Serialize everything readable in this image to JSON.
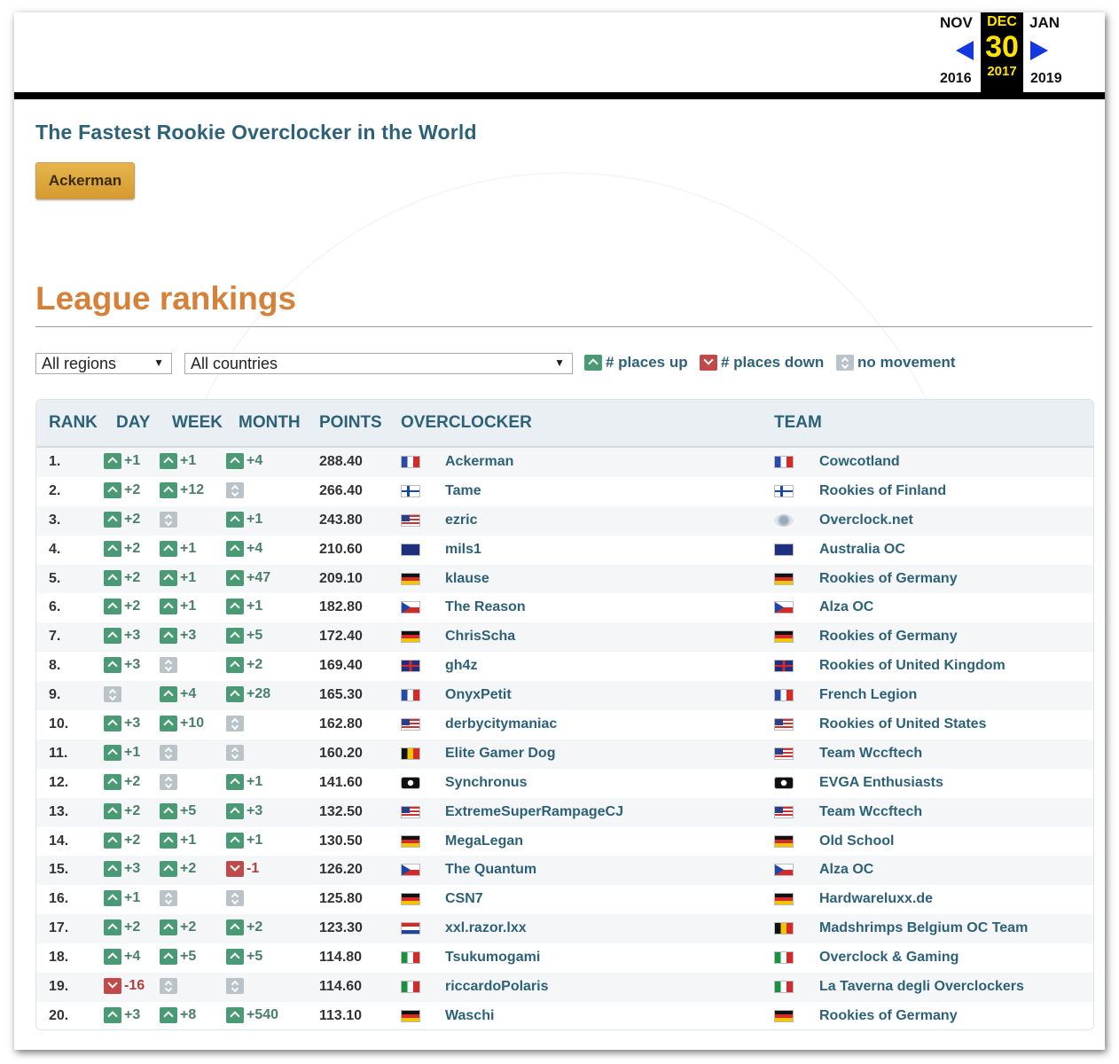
{
  "date_nav": {
    "prev_month": "NOV",
    "current_month": "DEC",
    "current_day": "30",
    "next_month": "JAN",
    "prev_year": "2016",
    "current_year": "2017",
    "next_year": "2019",
    "arrow_color": "#1437e0",
    "highlight_color": "#ffe300"
  },
  "rookie": {
    "title": "The Fastest Rookie Overclocker in the World",
    "winner": "Ackerman"
  },
  "league": {
    "title": "League rankings",
    "region_select": "All regions",
    "country_select": "All countries",
    "legend_up": "# places up",
    "legend_down": "# places down",
    "legend_none": "no movement"
  },
  "table": {
    "headers": {
      "rank": "RANK",
      "day": "DAY",
      "week": "WEEK",
      "month": "MONTH",
      "points": "POINTS",
      "overclocker": "OVERCLOCKER",
      "team": "TEAM"
    },
    "rows": [
      {
        "rank": "1.",
        "day": "+1",
        "week": "+1",
        "month": "+4",
        "points": "288.40",
        "oc": "Ackerman",
        "oc_flag": "fr",
        "team": "Cowcotland",
        "team_flag": "fr"
      },
      {
        "rank": "2.",
        "day": "+2",
        "week": "+12",
        "month": "",
        "points": "266.40",
        "oc": "Tame",
        "oc_flag": "fi",
        "team": "Rookies of Finland",
        "team_flag": "fi"
      },
      {
        "rank": "3.",
        "day": "+2",
        "week": "",
        "month": "+1",
        "points": "243.80",
        "oc": "ezric",
        "oc_flag": "us",
        "team": "Overclock.net",
        "team_flag": "ocnet"
      },
      {
        "rank": "4.",
        "day": "+2",
        "week": "+1",
        "month": "+4",
        "points": "210.60",
        "oc": "mils1",
        "oc_flag": "au",
        "team": "Australia OC",
        "team_flag": "au"
      },
      {
        "rank": "5.",
        "day": "+2",
        "week": "+1",
        "month": "+47",
        "points": "209.10",
        "oc": "klause",
        "oc_flag": "de",
        "team": "Rookies of Germany",
        "team_flag": "de"
      },
      {
        "rank": "6.",
        "day": "+2",
        "week": "+1",
        "month": "+1",
        "points": "182.80",
        "oc": "The Reason",
        "oc_flag": "cz",
        "team": "Alza OC",
        "team_flag": "cz"
      },
      {
        "rank": "7.",
        "day": "+3",
        "week": "+3",
        "month": "+5",
        "points": "172.40",
        "oc": "ChrisScha",
        "oc_flag": "de",
        "team": "Rookies of Germany",
        "team_flag": "de"
      },
      {
        "rank": "8.",
        "day": "+3",
        "week": "",
        "month": "+2",
        "points": "169.40",
        "oc": "gh4z",
        "oc_flag": "gb",
        "team": "Rookies of United Kingdom",
        "team_flag": "gb"
      },
      {
        "rank": "9.",
        "day": "",
        "week": "+4",
        "month": "+28",
        "points": "165.30",
        "oc": "OnyxPetit",
        "oc_flag": "fr",
        "team": "French Legion",
        "team_flag": "fr"
      },
      {
        "rank": "10.",
        "day": "+3",
        "week": "+10",
        "month": "",
        "points": "162.80",
        "oc": "derbycitymaniac",
        "oc_flag": "us",
        "team": "Rookies of United States",
        "team_flag": "us"
      },
      {
        "rank": "11.",
        "day": "+1",
        "week": "",
        "month": "",
        "points": "160.20",
        "oc": "Elite Gamer Dog",
        "oc_flag": "be",
        "team": "Team Wccftech",
        "team_flag": "us"
      },
      {
        "rank": "12.",
        "day": "+2",
        "week": "",
        "month": "+1",
        "points": "141.60",
        "oc": "Synchronus",
        "oc_flag": "evga",
        "team": "EVGA Enthusiasts",
        "team_flag": "evga"
      },
      {
        "rank": "13.",
        "day": "+2",
        "week": "+5",
        "month": "+3",
        "points": "132.50",
        "oc": "ExtremeSuperRampageCJ",
        "oc_flag": "us",
        "team": "Team Wccftech",
        "team_flag": "us"
      },
      {
        "rank": "14.",
        "day": "+2",
        "week": "+1",
        "month": "+1",
        "points": "130.50",
        "oc": "MegaLegan",
        "oc_flag": "de",
        "team": "Old School",
        "team_flag": "de"
      },
      {
        "rank": "15.",
        "day": "+3",
        "week": "+2",
        "month": "-1",
        "points": "126.20",
        "oc": "The Quantum",
        "oc_flag": "cz",
        "team": "Alza OC",
        "team_flag": "cz"
      },
      {
        "rank": "16.",
        "day": "+1",
        "week": "",
        "month": "",
        "points": "125.80",
        "oc": "CSN7",
        "oc_flag": "de",
        "team": "Hardwareluxx.de",
        "team_flag": "de"
      },
      {
        "rank": "17.",
        "day": "+2",
        "week": "+2",
        "month": "+2",
        "points": "123.30",
        "oc": "xxl.razor.lxx",
        "oc_flag": "nl",
        "team": "Madshrimps Belgium OC Team",
        "team_flag": "be"
      },
      {
        "rank": "18.",
        "day": "+4",
        "week": "+5",
        "month": "+5",
        "points": "114.80",
        "oc": "Tsukumogami",
        "oc_flag": "it",
        "team": "Overclock & Gaming",
        "team_flag": "it"
      },
      {
        "rank": "19.",
        "day": "-16",
        "week": "",
        "month": "",
        "points": "114.60",
        "oc": "riccardoPolaris",
        "oc_flag": "it",
        "team": "La Taverna degli Overclockers",
        "team_flag": "it"
      },
      {
        "rank": "20.",
        "day": "+3",
        "week": "+8",
        "month": "+540",
        "points": "113.10",
        "oc": "Waschi",
        "oc_flag": "de",
        "team": "Rookies of Germany",
        "team_flag": "de"
      }
    ]
  },
  "colors": {
    "heading": "#2d6178",
    "league_title": "#d6813a",
    "up": "#4a9a76",
    "down": "#c04a4a",
    "no_move": "#b9c3c8"
  }
}
